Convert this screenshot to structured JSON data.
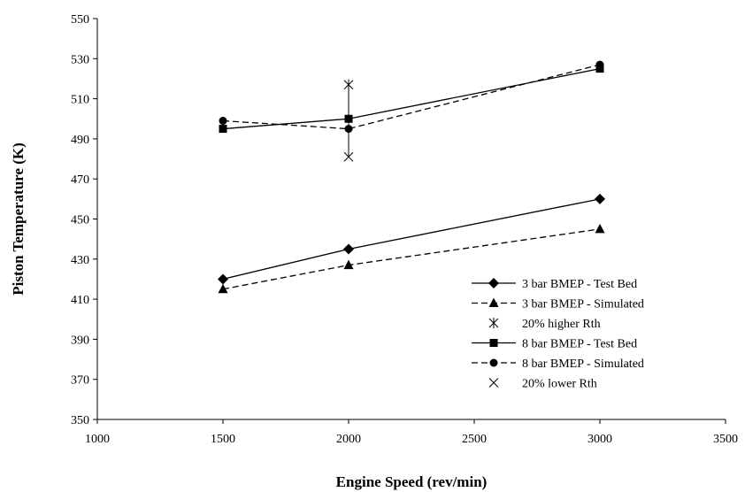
{
  "chart_data": {
    "type": "line",
    "title": "",
    "xlabel": "Engine Speed (rev/min)",
    "ylabel": "Piston Temperature (K)",
    "xlim": [
      1000,
      3500
    ],
    "ylim": [
      350,
      550
    ],
    "xticks": [
      1000,
      1500,
      2000,
      2500,
      3000,
      3500
    ],
    "yticks": [
      350,
      370,
      390,
      410,
      430,
      450,
      470,
      490,
      510,
      530,
      550
    ],
    "grid": false,
    "legend_position": "bottom-right",
    "series": [
      {
        "name": "3 bar BMEP - Test Bed",
        "marker": "diamond",
        "line": "solid",
        "x": [
          1500,
          2000,
          3000
        ],
        "y": [
          420,
          435,
          460
        ]
      },
      {
        "name": "3 bar BMEP - Simulated",
        "marker": "triangle",
        "line": "dashed",
        "x": [
          1500,
          2000,
          3000
        ],
        "y": [
          415,
          427,
          445
        ]
      },
      {
        "name": "20% higher Rth",
        "marker": "asterisk",
        "line": "none",
        "x": [
          2000
        ],
        "y": [
          517
        ]
      },
      {
        "name": "8 bar BMEP - Test Bed",
        "marker": "square",
        "line": "solid",
        "x": [
          1500,
          2000,
          3000
        ],
        "y": [
          495,
          500,
          525
        ]
      },
      {
        "name": "8 bar BMEP - Simulated",
        "marker": "circle",
        "line": "dashed",
        "x": [
          1500,
          2000,
          3000
        ],
        "y": [
          499,
          495,
          527
        ]
      },
      {
        "name": "20% lower Rth",
        "marker": "cross",
        "line": "none",
        "x": [
          2000
        ],
        "y": [
          481
        ]
      }
    ],
    "error_bar": {
      "x": 2000,
      "low": 481,
      "high": 517
    }
  }
}
